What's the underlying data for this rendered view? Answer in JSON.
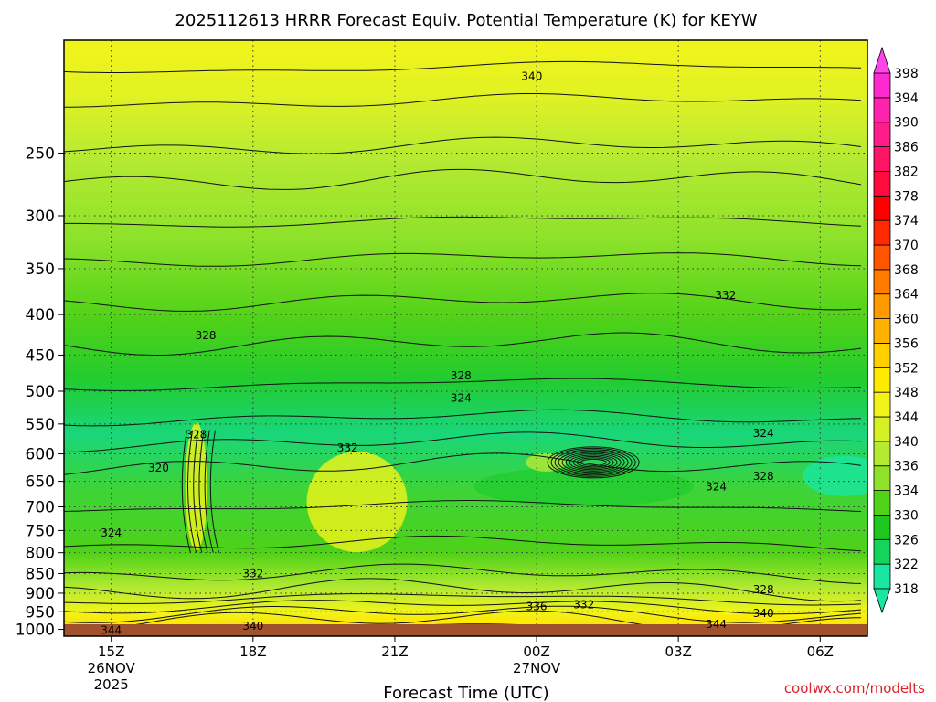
{
  "chart_data": {
    "type": "heatmap",
    "title": "2025112613 HRRR Forecast Equiv. Potential Temperature (K) for KEYW",
    "xlabel": "Forecast Time (UTC)",
    "ylabel": "",
    "x_ticks": [
      {
        "hour": 15,
        "label": "15Z",
        "label2": "26NOV",
        "label3": "2025"
      },
      {
        "hour": 18,
        "label": "18Z"
      },
      {
        "hour": 21,
        "label": "21Z"
      },
      {
        "hour": 24,
        "label": "00Z",
        "label2": "27NOV"
      },
      {
        "hour": 27,
        "label": "03Z"
      },
      {
        "hour": 30,
        "label": "06Z"
      }
    ],
    "xlim": [
      14,
      31
    ],
    "y_scale": "log-pressure",
    "ylim": [
      1020,
      180
    ],
    "y_ticks": [
      250,
      300,
      350,
      400,
      450,
      500,
      550,
      600,
      650,
      700,
      750,
      800,
      850,
      900,
      950,
      1000
    ],
    "colorbar": {
      "levels": [
        318,
        322,
        326,
        330,
        334,
        336,
        340,
        344,
        348,
        352,
        356,
        360,
        364,
        368,
        370,
        374,
        378,
        382,
        386,
        390,
        394,
        398
      ],
      "colors": [
        "#19e6a0",
        "#12d55a",
        "#1fc81f",
        "#4fd218",
        "#8ee22a",
        "#b5ea32",
        "#d6f026",
        "#f2f419",
        "#ffea00",
        "#ffcf00",
        "#ffb200",
        "#ff9a00",
        "#ff7c00",
        "#ff5500",
        "#ff2a00",
        "#ff0000",
        "#ff0b3c",
        "#ff1466",
        "#ff1c8a",
        "#ff22ad",
        "#ff29d2",
        "#ff44ee"
      ]
    },
    "ground_color": "#a0522d",
    "contour_labels": [
      {
        "text": "340",
        "hour": 23.9,
        "p": 200
      },
      {
        "text": "332",
        "hour": 28.0,
        "p": 378
      },
      {
        "text": "328",
        "hour": 17.0,
        "p": 425
      },
      {
        "text": "328",
        "hour": 22.4,
        "p": 478
      },
      {
        "text": "324",
        "hour": 22.4,
        "p": 510
      },
      {
        "text": "324",
        "hour": 28.8,
        "p": 565
      },
      {
        "text": "328",
        "hour": 16.8,
        "p": 567
      },
      {
        "text": "332",
        "hour": 20.0,
        "p": 590
      },
      {
        "text": "320",
        "hour": 16.0,
        "p": 625
      },
      {
        "text": "324",
        "hour": 27.8,
        "p": 660
      },
      {
        "text": "328",
        "hour": 28.8,
        "p": 640
      },
      {
        "text": "324",
        "hour": 15.0,
        "p": 755
      },
      {
        "text": "332",
        "hour": 18.0,
        "p": 850
      },
      {
        "text": "328",
        "hour": 28.8,
        "p": 890
      },
      {
        "text": "336",
        "hour": 24.0,
        "p": 935
      },
      {
        "text": "332",
        "hour": 25.0,
        "p": 930
      },
      {
        "text": "340",
        "hour": 28.8,
        "p": 955
      },
      {
        "text": "344",
        "hour": 27.8,
        "p": 985
      },
      {
        "text": "340",
        "hour": 18.0,
        "p": 990
      },
      {
        "text": "344",
        "hour": 15.0,
        "p": 1003
      }
    ]
  },
  "credit": "coolwx.com/modelts"
}
